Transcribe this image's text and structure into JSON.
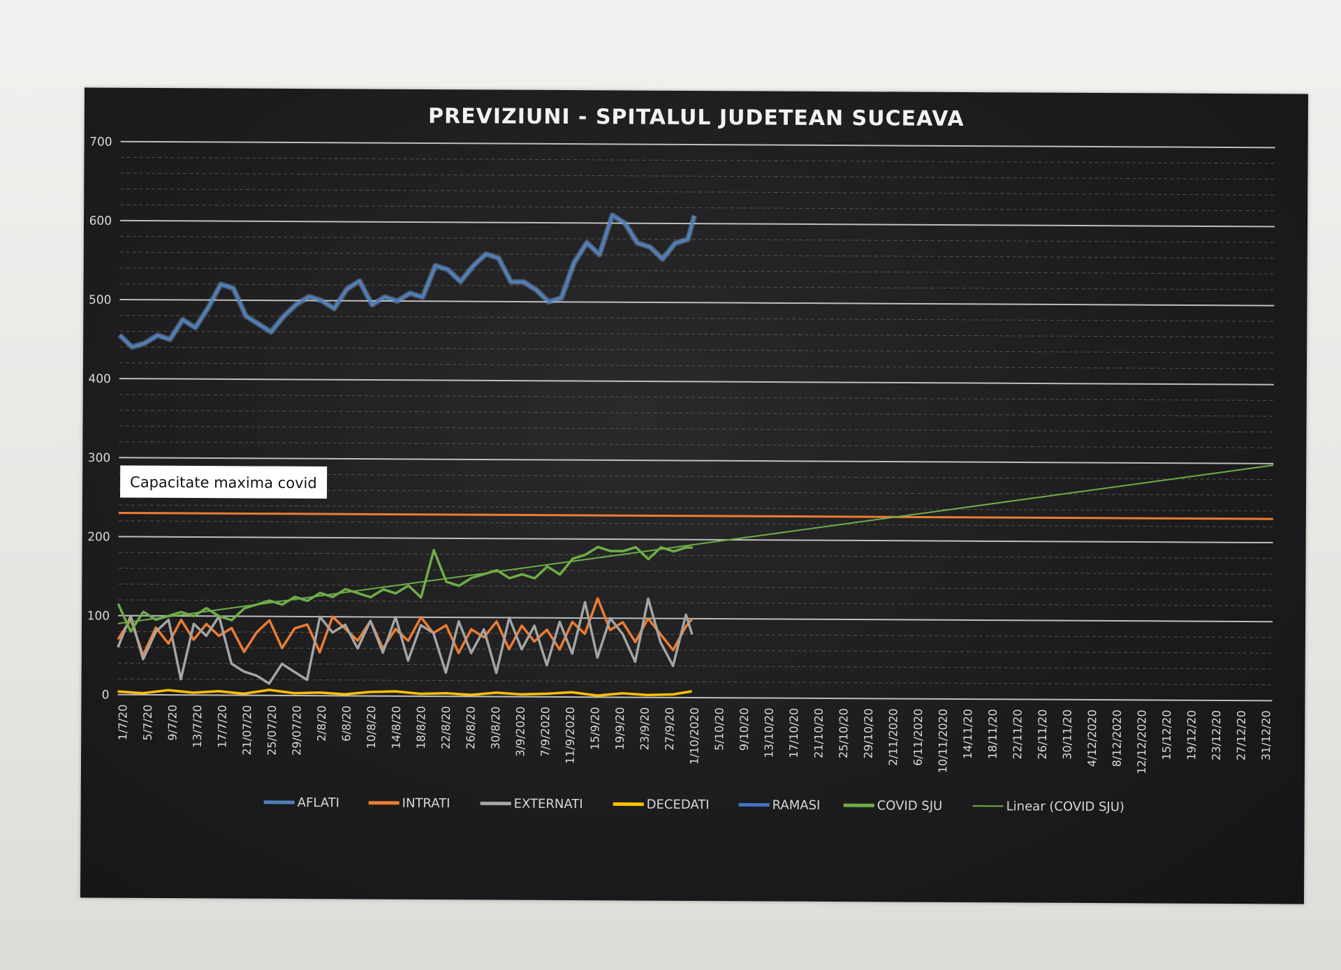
{
  "chart_data": {
    "type": "line",
    "title": "PREVIZIUNI - SPITALUL JUDETEAN SUCEAVA",
    "xlabel": "",
    "ylabel": "",
    "ylim": [
      0,
      700
    ],
    "yticks": [
      0,
      100,
      200,
      300,
      400,
      500,
      600,
      700
    ],
    "grid": true,
    "legend_position": "bottom",
    "x_tick_labels": [
      "1/7/20",
      "5/7/20",
      "9/7/20",
      "13/7/20",
      "17/7/20",
      "21/07/20",
      "25/07/20",
      "29/07/20",
      "2/8/20",
      "6/8/20",
      "10/8/20",
      "14/8/20",
      "18/8/20",
      "22/8/20",
      "26/8/20",
      "30/8/20",
      "3/9/2020",
      "7/9/2020",
      "11/9/2020",
      "15/9/20",
      "19/9/20",
      "23/9/20",
      "27/9/20",
      "1/10/2020",
      "5/10/20",
      "9/10/20",
      "13/10/20",
      "17/10/20",
      "21/10/20",
      "25/10/20",
      "29/10/20",
      "2/11/2020",
      "6/11/2020",
      "10/11/2020",
      "14/11/20",
      "18/11/20",
      "22/11/20",
      "26/11/20",
      "30/11/20",
      "4/12/2020",
      "8/12/2020",
      "12/12/2020",
      "15/12/20",
      "19/12/20",
      "23/12/20",
      "27/12/20",
      "31/12/20"
    ],
    "x_start": "2020-07-01",
    "x_end": "2020-12-31",
    "series": [
      {
        "name": "AFLATI",
        "color": "#4f81bd",
        "x": [
          "2020-07-01",
          "2020-07-03",
          "2020-07-05",
          "2020-07-07",
          "2020-07-09",
          "2020-07-11",
          "2020-07-13",
          "2020-07-15",
          "2020-07-17",
          "2020-07-19",
          "2020-07-21",
          "2020-07-23",
          "2020-07-25",
          "2020-07-27",
          "2020-07-29",
          "2020-07-31",
          "2020-08-02",
          "2020-08-04",
          "2020-08-06",
          "2020-08-08",
          "2020-08-10",
          "2020-08-12",
          "2020-08-14",
          "2020-08-16",
          "2020-08-18",
          "2020-08-20",
          "2020-08-22",
          "2020-08-24",
          "2020-08-26",
          "2020-08-28",
          "2020-08-30",
          "2020-09-01",
          "2020-09-03",
          "2020-09-05",
          "2020-09-07",
          "2020-09-09",
          "2020-09-11",
          "2020-09-13",
          "2020-09-15",
          "2020-09-17",
          "2020-09-19",
          "2020-09-21",
          "2020-09-23",
          "2020-09-25",
          "2020-09-27",
          "2020-09-29",
          "2020-09-30"
        ],
        "y": [
          455,
          440,
          445,
          455,
          450,
          475,
          465,
          490,
          520,
          515,
          480,
          470,
          460,
          480,
          495,
          505,
          500,
          490,
          515,
          525,
          495,
          505,
          500,
          510,
          505,
          545,
          540,
          525,
          545,
          560,
          555,
          525,
          525,
          515,
          500,
          505,
          550,
          575,
          560,
          610,
          600,
          575,
          570,
          555,
          575,
          580,
          610
        ]
      },
      {
        "name": "INTRATI",
        "color": "#ed7d31",
        "x": [
          "2020-07-01",
          "2020-07-03",
          "2020-07-05",
          "2020-07-07",
          "2020-07-09",
          "2020-07-11",
          "2020-07-13",
          "2020-07-15",
          "2020-07-17",
          "2020-07-19",
          "2020-07-21",
          "2020-07-23",
          "2020-07-25",
          "2020-07-27",
          "2020-07-29",
          "2020-07-31",
          "2020-08-02",
          "2020-08-04",
          "2020-08-06",
          "2020-08-08",
          "2020-08-10",
          "2020-08-12",
          "2020-08-14",
          "2020-08-16",
          "2020-08-18",
          "2020-08-20",
          "2020-08-22",
          "2020-08-24",
          "2020-08-26",
          "2020-08-28",
          "2020-08-30",
          "2020-09-01",
          "2020-09-03",
          "2020-09-05",
          "2020-09-07",
          "2020-09-09",
          "2020-09-11",
          "2020-09-13",
          "2020-09-15",
          "2020-09-17",
          "2020-09-19",
          "2020-09-21",
          "2020-09-23",
          "2020-09-25",
          "2020-09-27",
          "2020-09-29",
          "2020-09-30"
        ],
        "y": [
          70,
          95,
          50,
          85,
          65,
          95,
          70,
          90,
          75,
          85,
          55,
          80,
          95,
          60,
          85,
          90,
          55,
          100,
          85,
          70,
          95,
          60,
          85,
          70,
          100,
          80,
          90,
          55,
          85,
          75,
          95,
          60,
          90,
          70,
          85,
          60,
          95,
          80,
          125,
          85,
          95,
          70,
          100,
          80,
          60,
          90,
          100
        ]
      },
      {
        "name": "EXTERNATI",
        "color": "#a5a5a5",
        "x": [
          "2020-07-01",
          "2020-07-03",
          "2020-07-05",
          "2020-07-07",
          "2020-07-09",
          "2020-07-11",
          "2020-07-13",
          "2020-07-15",
          "2020-07-17",
          "2020-07-19",
          "2020-07-21",
          "2020-07-23",
          "2020-07-25",
          "2020-07-27",
          "2020-07-29",
          "2020-07-31",
          "2020-08-02",
          "2020-08-04",
          "2020-08-06",
          "2020-08-08",
          "2020-08-10",
          "2020-08-12",
          "2020-08-14",
          "2020-08-16",
          "2020-08-18",
          "2020-08-20",
          "2020-08-22",
          "2020-08-24",
          "2020-08-26",
          "2020-08-28",
          "2020-08-30",
          "2020-09-01",
          "2020-09-03",
          "2020-09-05",
          "2020-09-07",
          "2020-09-09",
          "2020-09-11",
          "2020-09-13",
          "2020-09-15",
          "2020-09-17",
          "2020-09-19",
          "2020-09-21",
          "2020-09-23",
          "2020-09-25",
          "2020-09-27",
          "2020-09-29",
          "2020-09-30"
        ],
        "y": [
          60,
          100,
          45,
          80,
          95,
          20,
          90,
          75,
          100,
          40,
          30,
          25,
          15,
          40,
          30,
          20,
          100,
          80,
          90,
          60,
          95,
          55,
          100,
          45,
          90,
          80,
          30,
          95,
          55,
          85,
          30,
          100,
          60,
          90,
          40,
          95,
          55,
          120,
          50,
          100,
          80,
          45,
          125,
          70,
          40,
          105,
          80
        ]
      },
      {
        "name": "DECEDATI",
        "color": "#ffc000",
        "x": [
          "2020-07-01",
          "2020-07-05",
          "2020-07-09",
          "2020-07-13",
          "2020-07-17",
          "2020-07-21",
          "2020-07-25",
          "2020-07-29",
          "2020-08-02",
          "2020-08-06",
          "2020-08-10",
          "2020-08-14",
          "2020-08-18",
          "2020-08-22",
          "2020-08-26",
          "2020-08-30",
          "2020-09-03",
          "2020-09-07",
          "2020-09-11",
          "2020-09-15",
          "2020-09-19",
          "2020-09-23",
          "2020-09-27",
          "2020-09-30"
        ],
        "y": [
          4,
          2,
          6,
          3,
          5,
          2,
          7,
          3,
          4,
          2,
          5,
          6,
          3,
          4,
          2,
          5,
          3,
          4,
          6,
          2,
          5,
          3,
          4,
          8
        ]
      },
      {
        "name": "RAMASI",
        "color": "#4472c4",
        "x": [],
        "y": []
      },
      {
        "name": "COVID SJU",
        "color": "#70ad47",
        "x": [
          "2020-07-01",
          "2020-07-03",
          "2020-07-05",
          "2020-07-07",
          "2020-07-09",
          "2020-07-11",
          "2020-07-13",
          "2020-07-15",
          "2020-07-17",
          "2020-07-19",
          "2020-07-21",
          "2020-07-23",
          "2020-07-25",
          "2020-07-27",
          "2020-07-29",
          "2020-07-31",
          "2020-08-02",
          "2020-08-04",
          "2020-08-06",
          "2020-08-08",
          "2020-08-10",
          "2020-08-12",
          "2020-08-14",
          "2020-08-16",
          "2020-08-18",
          "2020-08-20",
          "2020-08-22",
          "2020-08-24",
          "2020-08-26",
          "2020-08-28",
          "2020-08-30",
          "2020-09-01",
          "2020-09-03",
          "2020-09-05",
          "2020-09-07",
          "2020-09-09",
          "2020-09-11",
          "2020-09-13",
          "2020-09-15",
          "2020-09-17",
          "2020-09-19",
          "2020-09-21",
          "2020-09-23",
          "2020-09-25",
          "2020-09-27",
          "2020-09-29",
          "2020-09-30"
        ],
        "y": [
          115,
          80,
          105,
          95,
          100,
          105,
          100,
          110,
          100,
          95,
          110,
          115,
          120,
          115,
          125,
          120,
          130,
          125,
          135,
          130,
          125,
          135,
          130,
          140,
          125,
          185,
          145,
          140,
          150,
          155,
          160,
          150,
          155,
          150,
          165,
          155,
          175,
          180,
          190,
          185,
          185,
          190,
          175,
          190,
          185,
          190,
          190
        ]
      },
      {
        "name": "Linear (COVID SJU)",
        "color": "#70ad47",
        "x": [
          "2020-07-01",
          "2020-12-31"
        ],
        "y": [
          90,
          298
        ]
      }
    ],
    "reference_line": {
      "y": 230,
      "color": "#ed7d31",
      "label": "Capacitate maxima covid"
    }
  }
}
